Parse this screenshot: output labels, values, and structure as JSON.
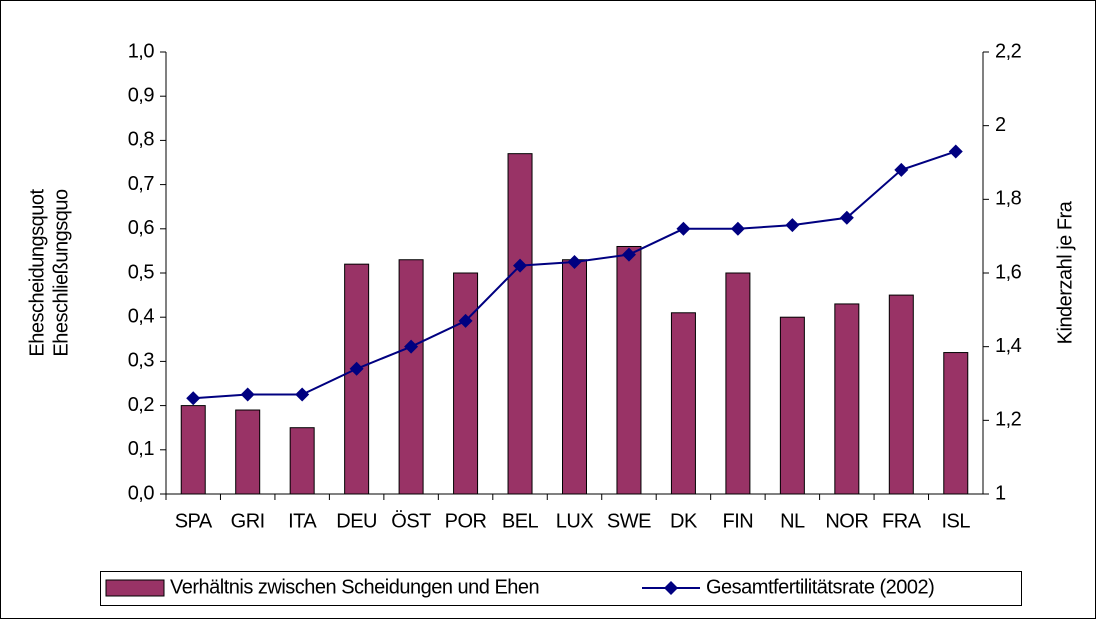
{
  "chart_data": {
    "type": "bar_line",
    "categories": [
      "SPA",
      "GRI",
      "ITA",
      "DEU",
      "ÖST",
      "POR",
      "BEL",
      "LUX",
      "SWE",
      "DK",
      "FIN",
      "NL",
      "NOR",
      "FRA",
      "ISL"
    ],
    "series": [
      {
        "name": "Verhältnis zwischen Scheidungen und Ehen",
        "type": "bar",
        "color": "#993366",
        "values": [
          0.2,
          0.19,
          0.15,
          0.52,
          0.53,
          0.5,
          0.77,
          0.53,
          0.56,
          0.41,
          0.5,
          0.4,
          0.43,
          0.45,
          0.32
        ]
      },
      {
        "name": "Gesamtfertilitätsrate (2002)",
        "type": "line",
        "axis": "y2",
        "color": "#000080",
        "values": [
          1.26,
          1.27,
          1.27,
          1.34,
          1.4,
          1.47,
          1.62,
          1.63,
          1.65,
          1.72,
          1.72,
          1.73,
          1.75,
          1.88,
          1.93
        ]
      }
    ],
    "y_label": [
      "Ehescheidungsquot",
      "Eheschließungsquo"
    ],
    "y2_label": "Kinderzahl je Fra",
    "ylim": [
      0,
      1
    ],
    "yticks": [
      {
        "value": 0,
        "label": "0,0"
      },
      {
        "value": 0.1,
        "label": "0,1"
      },
      {
        "value": 0.2,
        "label": "0,2"
      },
      {
        "value": 0.3,
        "label": "0,3"
      },
      {
        "value": 0.4,
        "label": "0,4"
      },
      {
        "value": 0.5,
        "label": "0,5"
      },
      {
        "value": 0.6,
        "label": "0,6"
      },
      {
        "value": 0.7,
        "label": "0,7"
      },
      {
        "value": 0.8,
        "label": "0,8"
      },
      {
        "value": 0.9,
        "label": "0,9"
      },
      {
        "value": 1,
        "label": "1,0"
      }
    ],
    "y2lim": [
      1,
      2.2
    ],
    "y2ticks": [
      1,
      {
        "value": 1.2,
        "label": "1,2"
      },
      {
        "value": 1.4,
        "label": "1,4"
      },
      {
        "value": 1.6,
        "label": "1,6"
      },
      {
        "value": 1.8,
        "label": "1,8"
      },
      2,
      {
        "value": 2.2,
        "label": "2,2"
      }
    ],
    "grid": false,
    "legend": "bottom"
  }
}
